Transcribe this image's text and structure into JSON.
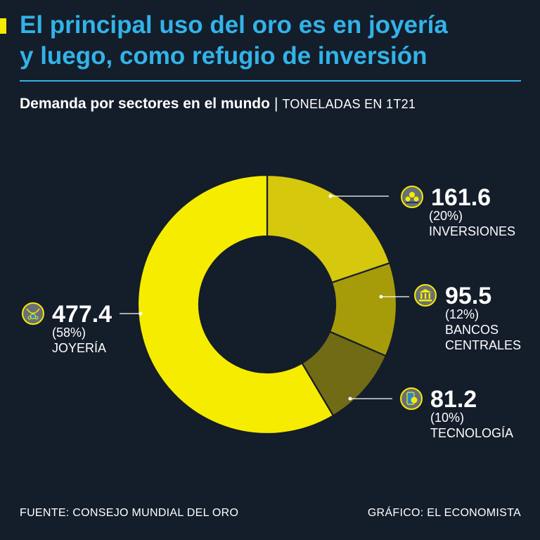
{
  "header": {
    "title_line1": "El principal uso del oro es en joyería",
    "title_line2": "y luego, como refugio de inversión",
    "subtitle_main": "Demanda por sectores en el mundo",
    "subtitle_sep": "|",
    "subtitle_unit": "TONELADAS EN 1T21"
  },
  "footer": {
    "source": "FUENTE: CONSEJO MUNDIAL DEL ORO",
    "credit": "GRÁFICO: EL ECONOMISTA"
  },
  "colors": {
    "background": "#141d2a",
    "title": "#32b3e8",
    "accent": "#f4e900"
  },
  "chart_data": {
    "type": "pie",
    "variant": "donut",
    "slices": [
      {
        "value": 161.6,
        "percent": "(20%)",
        "label_lines": [
          "INVERSIONES"
        ],
        "color": "#d6c80d",
        "icon": "coins-hand-icon"
      },
      {
        "value": 95.5,
        "percent": "(12%)",
        "label_lines": [
          "BANCOS",
          "CENTRALES"
        ],
        "color": "#a69c0a",
        "icon": "bank-icon"
      },
      {
        "value": 81.2,
        "percent": "(10%)",
        "label_lines": [
          "TECNOLOGÍA"
        ],
        "color": "#706b14",
        "icon": "smartphone-icon"
      },
      {
        "value": 477.4,
        "percent": "(58%)",
        "label_lines": [
          "JOYERÍA"
        ],
        "color": "#f6ec00",
        "icon": "jewelry-icon"
      }
    ]
  }
}
